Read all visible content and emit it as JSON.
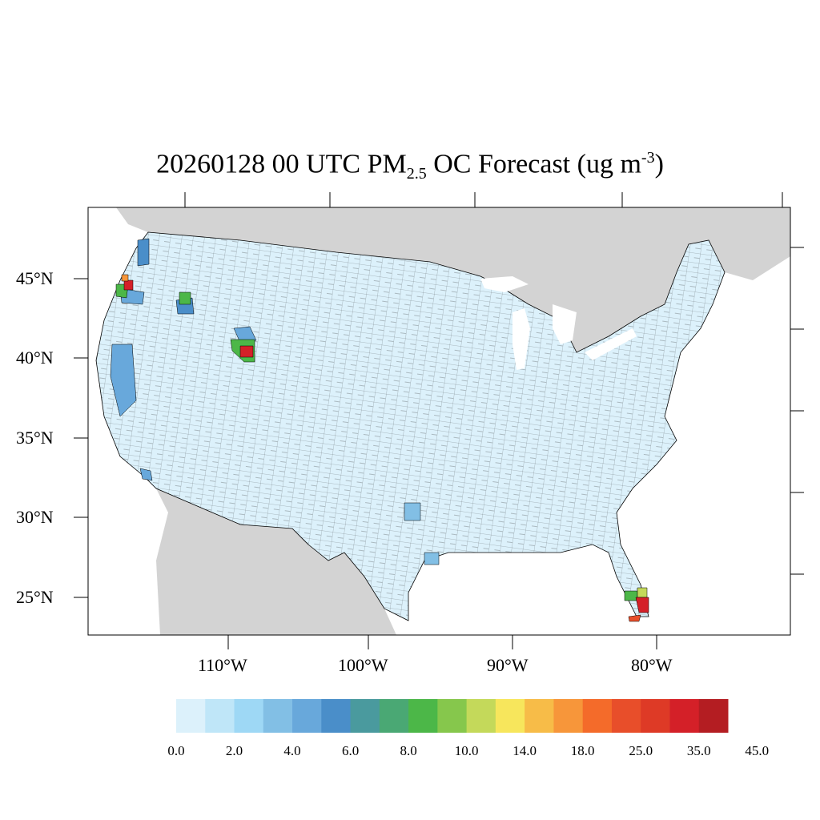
{
  "title": {
    "pre": "20260128 00 UTC PM",
    "sub": "2.5",
    "mid": " OC Forecast (ug m",
    "sup": "-3",
    "post": ")"
  },
  "lat_labels": [
    "45°N",
    "40°N",
    "35°N",
    "30°N",
    "25°N"
  ],
  "lon_labels": [
    "110°W",
    "100°W",
    "90°W",
    "80°W"
  ],
  "colorbar": {
    "labels": [
      "0.0",
      "2.0",
      "4.0",
      "6.0",
      "8.0",
      "10.0",
      "14.0",
      "18.0",
      "25.0",
      "35.0",
      "45.0"
    ],
    "colors": [
      "#dcf1fb",
      "#bfe6f8",
      "#9ed8f5",
      "#82bfe5",
      "#68a8db",
      "#4a8ec9",
      "#4a9a9e",
      "#4aa874",
      "#4cb748",
      "#86c74c",
      "#c4d95a",
      "#f7e65c",
      "#f7bc48",
      "#f7963a",
      "#f46b2a",
      "#e84e2a",
      "#de3a26",
      "#d42028",
      "#b41d22",
      "#921a1c"
    ]
  },
  "colors": {
    "land_other": "#d3d3d3",
    "ocean": "#ffffff",
    "base_fill": "#dcf1fb"
  }
}
